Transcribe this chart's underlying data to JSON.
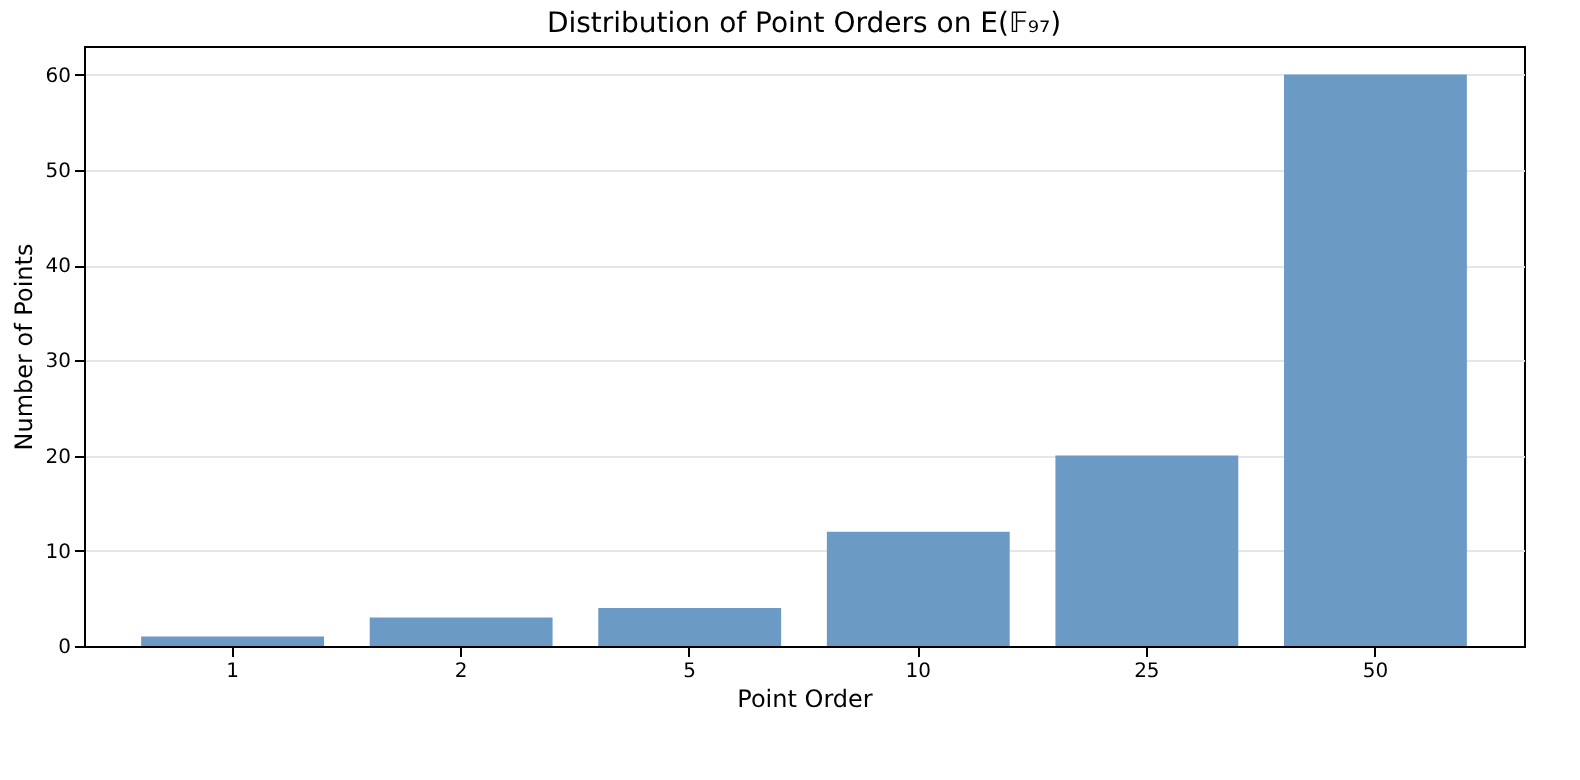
{
  "chart_data": {
    "type": "bar",
    "title": "Distribution of Point Orders on E(𝔽₉₇)",
    "xlabel": "Point Order",
    "ylabel": "Number of Points",
    "categories": [
      "1",
      "2",
      "5",
      "10",
      "25",
      "50"
    ],
    "values": [
      1,
      3,
      4,
      12,
      20,
      60
    ],
    "color": "#6b9bc4",
    "ylim": [
      0,
      63
    ],
    "yticks": [
      0,
      10,
      20,
      30,
      40,
      50,
      60
    ],
    "grid": "y"
  }
}
